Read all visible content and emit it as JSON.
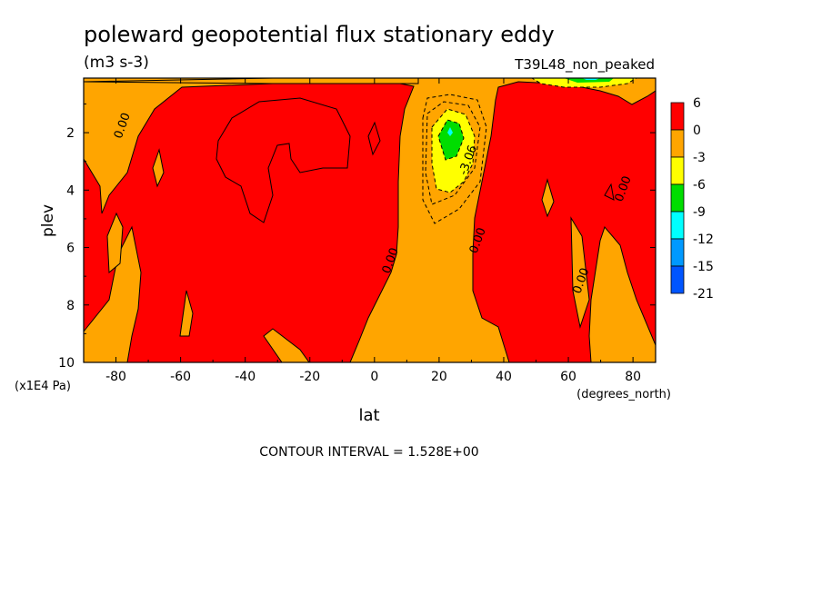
{
  "chart_data": {
    "type": "heatmap",
    "title": "poleward geopotential flux stationary eddy",
    "units": "(m3 s-3)",
    "run_label": "T39L48_non_peaked",
    "xlabel": "lat",
    "xunits": "(degrees_north)",
    "ylabel": "plev",
    "yunits": "(x1E4 Pa)",
    "xlim": [
      -90,
      87
    ],
    "ylim": [
      10,
      0.1
    ],
    "x_ticks": [
      -80,
      -60,
      -40,
      -20,
      0,
      20,
      40,
      60,
      80
    ],
    "x_tick_labels": [
      "-80",
      "-60",
      "-40",
      "-20",
      "0",
      "20",
      "40",
      "60",
      "80"
    ],
    "y_ticks": [
      2,
      4,
      6,
      8,
      10
    ],
    "y_tick_labels": [
      "2",
      "4",
      "6",
      "8",
      "10"
    ],
    "contour_labels": [
      {
        "text": "0.00",
        "lat": -77,
        "plev": 1.8
      },
      {
        "text": "0.00",
        "lat": 6,
        "plev": 6.5
      },
      {
        "text": "0.00",
        "lat": 33,
        "plev": 5.8
      },
      {
        "text": "0.00",
        "lat": 65,
        "plev": 7.2
      },
      {
        "text": "0.00",
        "lat": 78,
        "plev": 4.0
      },
      {
        "text": "-3.06",
        "lat": 30,
        "plev": 3.0
      }
    ],
    "color_levels": [
      {
        "label": "6",
        "color": "#ff0000"
      },
      {
        "label": "0",
        "color": "#ffa500"
      },
      {
        "label": "-3",
        "color": "#ffff00"
      },
      {
        "label": "-6",
        "color": "#00dd00"
      },
      {
        "label": "-9",
        "color": "#00ffff"
      },
      {
        "label": "-12",
        "color": "#0099ff"
      },
      {
        "label": "-15",
        "color": "#0055ff"
      },
      {
        "label": "-21",
        "color": ""
      }
    ],
    "contour_interval_text": "CONTOUR INTERVAL = 1.528E+00",
    "grid": false
  }
}
